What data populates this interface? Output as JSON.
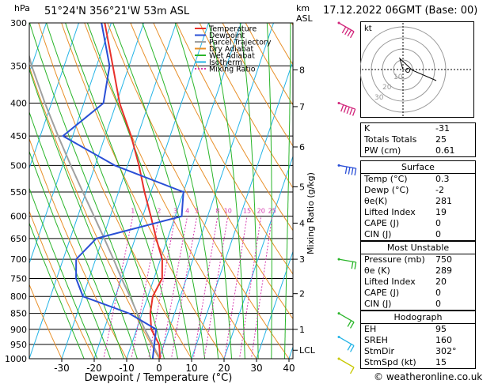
{
  "header": {
    "hpa_label": "hPa",
    "location": "51°24'N  356°21'W  53m  ASL",
    "km_label": "km",
    "asl_label": "ASL",
    "datetime": "17.12.2022  06GMT  (Base: 00)"
  },
  "legend": [
    "Temperature",
    "Dewpoint",
    "Parcel Trajectory",
    "Dry Adiabat",
    "Wet Adiabat",
    "Isotherm",
    "Mixing Ratio"
  ],
  "colors": {
    "temperature": "#e8302a",
    "dewpoint": "#2a4fd6",
    "parcel": "#a0a0a0",
    "dry_adiabat": "#e8902a",
    "wet_adiabat": "#2ab52a",
    "isotherm": "#24b4e6",
    "mixing_ratio": "#d63ab0",
    "wind_barb": "#d1247a"
  },
  "chart_data": {
    "type": "line",
    "xlabel": "Dewpoint / Temperature (°C)",
    "y2label": "Mixing Ratio (g/kg)",
    "x_ticks": [
      -30,
      -20,
      -10,
      0,
      10,
      20,
      30,
      40
    ],
    "pressure_levels": [
      300,
      350,
      400,
      450,
      500,
      550,
      600,
      650,
      700,
      750,
      800,
      850,
      900,
      950,
      1000
    ],
    "height_km_labels": [
      {
        "label": "8",
        "p": 355
      },
      {
        "label": "7",
        "p": 405
      },
      {
        "label": "6",
        "p": 468
      },
      {
        "label": "5",
        "p": 540
      },
      {
        "label": "4",
        "p": 615
      },
      {
        "label": "3",
        "p": 700
      },
      {
        "label": "2",
        "p": 792
      },
      {
        "label": "1",
        "p": 900
      },
      {
        "label": "LCL",
        "p": 970
      }
    ],
    "mixing_ratio_labels": [
      "1",
      "2",
      "3",
      "4",
      "5",
      "8",
      "10",
      "15",
      "20",
      "25"
    ],
    "series": [
      {
        "name": "Temperature",
        "points": [
          [
            1000,
            0.3
          ],
          [
            950,
            -1.5
          ],
          [
            900,
            -5.5
          ],
          [
            850,
            -7.5
          ],
          [
            800,
            -8.5
          ],
          [
            750,
            -7.5
          ],
          [
            700,
            -9.5
          ],
          [
            650,
            -13.5
          ],
          [
            600,
            -17.5
          ],
          [
            550,
            -22
          ],
          [
            500,
            -26.5
          ],
          [
            450,
            -32
          ],
          [
            400,
            -39
          ],
          [
            350,
            -45
          ],
          [
            300,
            -52
          ]
        ]
      },
      {
        "name": "Dewpoint",
        "points": [
          [
            1000,
            -2
          ],
          [
            950,
            -3
          ],
          [
            900,
            -4
          ],
          [
            850,
            -14
          ],
          [
            800,
            -30
          ],
          [
            750,
            -34
          ],
          [
            700,
            -36
          ],
          [
            650,
            -32
          ],
          [
            600,
            -8
          ],
          [
            550,
            -10
          ],
          [
            500,
            -34
          ],
          [
            450,
            -53
          ],
          [
            400,
            -44
          ],
          [
            350,
            -46
          ],
          [
            300,
            -53
          ]
        ]
      },
      {
        "name": "Parcel Trajectory",
        "points": [
          [
            1000,
            0.3
          ],
          [
            970,
            -2
          ],
          [
            900,
            -7.5
          ],
          [
            850,
            -11.5
          ],
          [
            800,
            -15.5
          ],
          [
            750,
            -20
          ],
          [
            700,
            -24.5
          ],
          [
            650,
            -29.5
          ],
          [
            600,
            -35
          ],
          [
            550,
            -41
          ],
          [
            500,
            -47.5
          ],
          [
            450,
            -54.5
          ],
          [
            400,
            -62
          ],
          [
            350,
            -70
          ],
          [
            300,
            -78
          ]
        ]
      }
    ],
    "wind_barbs": [
      {
        "p": 300,
        "dir": 300,
        "kt": 40
      },
      {
        "p": 400,
        "dir": 290,
        "kt": 45
      },
      {
        "p": 500,
        "dir": 280,
        "kt": 40
      },
      {
        "p": 700,
        "dir": 280,
        "kt": 20
      },
      {
        "p": 850,
        "dir": 300,
        "kt": 15
      },
      {
        "p": 925,
        "dir": 300,
        "kt": 15
      },
      {
        "p": 1000,
        "dir": 300,
        "kt": 10
      }
    ]
  },
  "hodograph": {
    "label": "kt",
    "ring_labels": [
      "10",
      "20",
      "30"
    ]
  },
  "indices": {
    "rows": [
      {
        "k": "K",
        "v": "-31"
      },
      {
        "k": "Totals Totals",
        "v": "25"
      },
      {
        "k": "PW (cm)",
        "v": "0.61"
      }
    ]
  },
  "surface": {
    "title": "Surface",
    "rows": [
      {
        "k": "Temp (°C)",
        "v": "0.3"
      },
      {
        "k": "Dewp (°C)",
        "v": "-2"
      },
      {
        "k": "θe(K)",
        "v": "281"
      },
      {
        "k": "Lifted Index",
        "v": "19"
      },
      {
        "k": "CAPE (J)",
        "v": "0"
      },
      {
        "k": "CIN (J)",
        "v": "0"
      }
    ]
  },
  "most_unstable": {
    "title": "Most Unstable",
    "rows": [
      {
        "k": "Pressure (mb)",
        "v": "750"
      },
      {
        "k": "θe (K)",
        "v": "289"
      },
      {
        "k": "Lifted Index",
        "v": "20"
      },
      {
        "k": "CAPE (J)",
        "v": "0"
      },
      {
        "k": "CIN (J)",
        "v": "0"
      }
    ]
  },
  "hodograph_table": {
    "title": "Hodograph",
    "rows": [
      {
        "k": "EH",
        "v": "95"
      },
      {
        "k": "SREH",
        "v": "160"
      },
      {
        "k": "StmDir",
        "v": "302°"
      },
      {
        "k": "StmSpd (kt)",
        "v": "15"
      }
    ]
  },
  "credit": "© weatheronline.co.uk"
}
